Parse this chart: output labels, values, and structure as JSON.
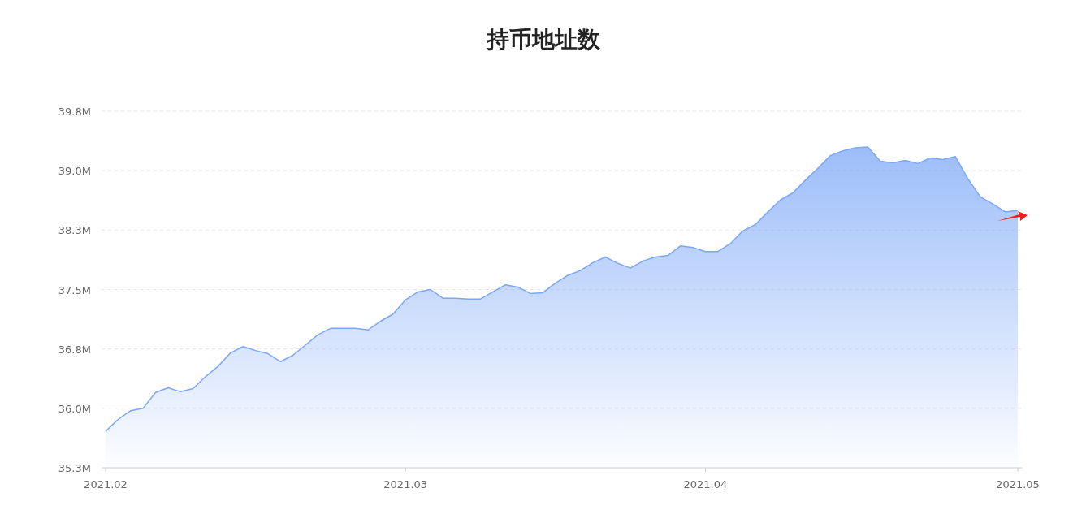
{
  "chart_data": {
    "type": "area",
    "title": "持币地址数",
    "categories": [
      "2021.02",
      null,
      null,
      null,
      null,
      null,
      null,
      null,
      null,
      null,
      null,
      null,
      null,
      null,
      null,
      null,
      null,
      null,
      null,
      null,
      null,
      null,
      null,
      null,
      "2021.03",
      null,
      null,
      null,
      null,
      null,
      null,
      null,
      null,
      null,
      null,
      null,
      null,
      null,
      null,
      null,
      null,
      null,
      null,
      null,
      null,
      null,
      null,
      null,
      "2021.04",
      null,
      null,
      null,
      null,
      null,
      null,
      null,
      null,
      null,
      null,
      null,
      null,
      null,
      null,
      null,
      null,
      null,
      null,
      null,
      null,
      null,
      null,
      null,
      null,
      "2021.05"
    ],
    "values": [
      35.71,
      35.86,
      35.97,
      36.0,
      36.2,
      36.26,
      36.21,
      36.25,
      36.4,
      36.53,
      36.7,
      36.78,
      36.73,
      36.69,
      36.59,
      36.67,
      36.8,
      36.93,
      37.01,
      37.01,
      37.01,
      36.99,
      37.1,
      37.19,
      37.37,
      37.47,
      37.5,
      37.39,
      37.39,
      37.38,
      37.38,
      37.47,
      37.56,
      37.53,
      37.45,
      37.46,
      37.58,
      37.68,
      37.74,
      37.84,
      37.91,
      37.83,
      37.77,
      37.86,
      37.91,
      37.93,
      38.05,
      38.03,
      37.98,
      37.98,
      38.08,
      38.24,
      38.32,
      38.48,
      38.63,
      38.72,
      38.88,
      39.03,
      39.19,
      39.25,
      39.29,
      39.3,
      39.12,
      39.1,
      39.13,
      39.09,
      39.16,
      39.14,
      39.18,
      38.9,
      38.67,
      38.58,
      38.48,
      38.5
    ],
    "color": "#7ba7f7",
    "ylim": [
      35.25,
      39.75
    ],
    "yticks": [
      {
        "value": 35.25,
        "label": "35.3M"
      },
      {
        "value": 36.0,
        "label": "36.0M"
      },
      {
        "value": 36.75,
        "label": "36.8M"
      },
      {
        "value": 37.5,
        "label": "37.5M"
      },
      {
        "value": 38.25,
        "label": "38.3M"
      },
      {
        "value": 39.0,
        "label": "39.0M"
      },
      {
        "value": 39.75,
        "label": "39.8M"
      }
    ],
    "grid": "y"
  }
}
